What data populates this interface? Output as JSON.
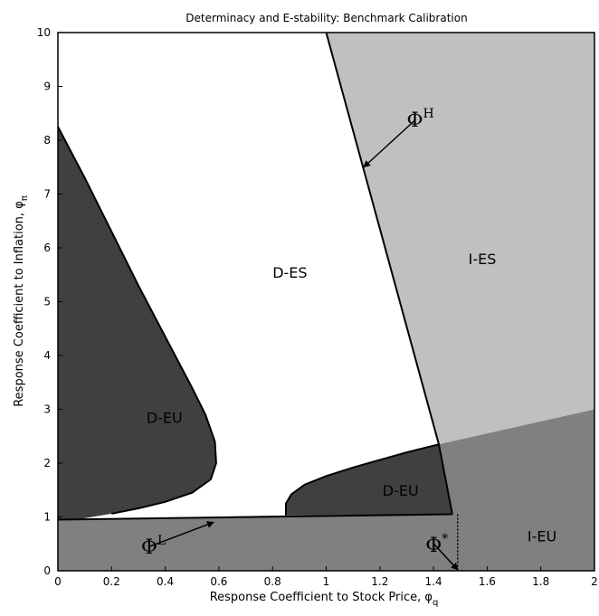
{
  "chart_data": {
    "type": "area",
    "title": "Determinacy and E-stability: Benchmark Calibration",
    "xlabel": "Response Coefficient to Stock Price, φ",
    "xlabel_sub": "q",
    "ylabel": "Response Coefficient to Inflation, φ",
    "ylabel_sub": "π",
    "xlim": [
      0,
      2
    ],
    "ylim": [
      0,
      10
    ],
    "xticks": [
      "0",
      "0.2",
      "0.4",
      "0.6",
      "0.8",
      "1",
      "1.2",
      "1.4",
      "1.6",
      "1.8",
      "2"
    ],
    "yticks": [
      "0",
      "1",
      "2",
      "3",
      "4",
      "5",
      "6",
      "7",
      "8",
      "9",
      "10"
    ],
    "grid": false,
    "colors": {
      "white_region": "#ffffff",
      "light_gray": "#c0c0c0",
      "mid_gray": "#808080",
      "dark_gray": "#404040"
    },
    "regions": [
      {
        "label": "D-ES",
        "label_at": [
          0.8,
          5.55
        ],
        "fill": "white_region",
        "polygon": [
          [
            0,
            0.95
          ],
          [
            0.08,
            0.96
          ],
          [
            0.85,
            1.03
          ],
          [
            1.47,
            1.05
          ],
          [
            1.42,
            2.35
          ],
          [
            1.0,
            10
          ],
          [
            0,
            10
          ]
        ]
      },
      {
        "label": "I-ES",
        "label_at": [
          1.53,
          5.8
        ],
        "fill": "light_gray",
        "polygon": [
          [
            1.0,
            10
          ],
          [
            2.0,
            10
          ],
          [
            2.0,
            3.0
          ],
          [
            1.42,
            2.35
          ]
        ]
      },
      {
        "label": "I-EU",
        "label_at": [
          1.75,
          0.65
        ],
        "fill": "mid_gray",
        "polygon": [
          [
            0,
            0
          ],
          [
            2.0,
            0
          ],
          [
            2.0,
            3.0
          ],
          [
            1.42,
            2.35
          ],
          [
            1.47,
            1.05
          ],
          [
            0.85,
            1.03
          ],
          [
            0.08,
            0.96
          ],
          [
            0,
            0.95
          ]
        ]
      },
      {
        "label": "D-EU",
        "label_at": [
          0.33,
          2.85
        ],
        "fill": "dark_gray",
        "polygon": [
          [
            0,
            8.25
          ],
          [
            0.1,
            7.3
          ],
          [
            0.2,
            6.3
          ],
          [
            0.3,
            5.3
          ],
          [
            0.4,
            4.35
          ],
          [
            0.5,
            3.4
          ],
          [
            0.55,
            2.9
          ],
          [
            0.585,
            2.4
          ],
          [
            0.59,
            2.0
          ],
          [
            0.57,
            1.7
          ],
          [
            0.5,
            1.45
          ],
          [
            0.4,
            1.28
          ],
          [
            0.3,
            1.16
          ],
          [
            0.2,
            1.06
          ],
          [
            0.08,
            0.96
          ],
          [
            0,
            0.95
          ]
        ]
      },
      {
        "label": "D-EU",
        "label_at": [
          1.21,
          1.5
        ],
        "fill": "dark_gray",
        "polygon": [
          [
            0.85,
            1.03
          ],
          [
            0.85,
            1.25
          ],
          [
            0.87,
            1.42
          ],
          [
            0.92,
            1.6
          ],
          [
            1.0,
            1.76
          ],
          [
            1.1,
            1.92
          ],
          [
            1.2,
            2.06
          ],
          [
            1.3,
            2.2
          ],
          [
            1.42,
            2.35
          ],
          [
            1.47,
            1.05
          ]
        ]
      }
    ],
    "boundaries": [
      {
        "name": "Φ^H",
        "points": [
          [
            1.0,
            10
          ],
          [
            1.42,
            2.35
          ],
          [
            1.47,
            1.05
          ]
        ]
      },
      {
        "name": "Φ^L",
        "points": [
          [
            0,
            0.95
          ],
          [
            1.47,
            1.05
          ]
        ]
      }
    ],
    "dotted_line": {
      "points": [
        [
          1.49,
          1.05
        ],
        [
          1.49,
          0
        ]
      ]
    },
    "annotations": [
      {
        "symbol": "Φ",
        "sup": "H",
        "text_at": [
          1.3,
          8.25
        ],
        "arrow_to": [
          1.14,
          7.5
        ]
      },
      {
        "symbol": "Φ",
        "sup": "L",
        "text_at": [
          0.31,
          0.32
        ],
        "arrow_to": [
          0.58,
          0.9
        ]
      },
      {
        "symbol": "Φ",
        "sup": "*",
        "text_at": [
          1.37,
          0.35
        ],
        "arrow_to": [
          1.49,
          0.02
        ]
      }
    ]
  }
}
